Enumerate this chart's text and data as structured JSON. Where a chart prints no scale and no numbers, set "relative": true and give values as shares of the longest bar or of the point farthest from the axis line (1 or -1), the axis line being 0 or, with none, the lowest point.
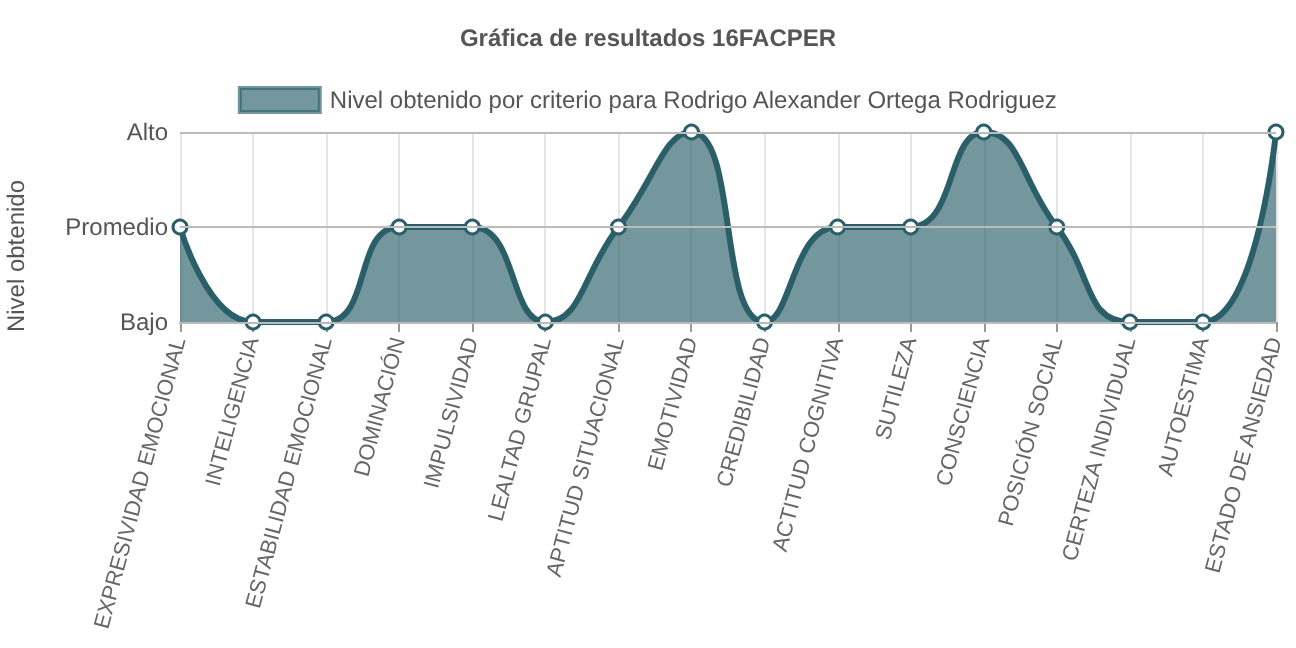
{
  "chart_data": {
    "type": "area",
    "title": "Gráfica de resultados 16FACPER",
    "ylabel": "Nivel obtenido",
    "categories": [
      "EXPRESIVIDAD EMOCIONAL",
      "INTELIGENCIA",
      "ESTABILIDAD EMOCIONAL",
      "DOMINACIÓN",
      "IMPULSIVIDAD",
      "LEALTAD GRUPAL",
      "APTITUD SITUACIONAL",
      "EMOTIVIDAD",
      "CREDIBILIDAD",
      "ACTITUD COGNITIVA",
      "SUTILEZA",
      "CONSCIENCIA",
      "POSICIÓN SOCIAL",
      "CERTEZA INDIVIDUAL",
      "AUTOESTIMA",
      "ESTADO DE ANSIEDAD"
    ],
    "series": [
      {
        "name": "Nivel obtenido por criterio para Rodrigo Alexander Ortega Rodriguez",
        "color": "#2a5f69",
        "values": [
          0.5,
          0,
          0,
          0.5,
          0.5,
          0,
          0.5,
          1,
          0,
          0.5,
          0.5,
          1,
          0.5,
          0,
          0,
          1
        ]
      }
    ],
    "relative": true,
    "ref_lines": [
      {
        "axis": "y",
        "value": 0,
        "label": "Bajo"
      },
      {
        "axis": "y",
        "value": 0.5,
        "label": "Promedio"
      },
      {
        "axis": "y",
        "value": 1,
        "label": "Alto"
      }
    ],
    "grid": "x",
    "legend": "top",
    "marker": "circle",
    "line_style": "solid"
  }
}
